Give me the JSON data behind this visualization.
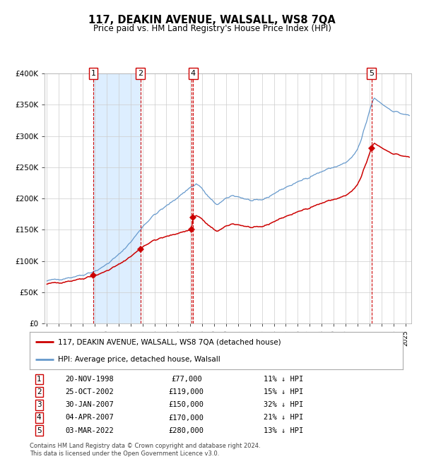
{
  "title": "117, DEAKIN AVENUE, WALSALL, WS8 7QA",
  "subtitle": "Price paid vs. HM Land Registry's House Price Index (HPI)",
  "legend_line1": "117, DEAKIN AVENUE, WALSALL, WS8 7QA (detached house)",
  "legend_line2": "HPI: Average price, detached house, Walsall",
  "footer1": "Contains HM Land Registry data © Crown copyright and database right 2024.",
  "footer2": "This data is licensed under the Open Government Licence v3.0.",
  "sales": [
    {
      "num": 1,
      "date": "20-NOV-1998",
      "price": 77000,
      "pct": "11% ↓ HPI",
      "year": 1998.89
    },
    {
      "num": 2,
      "date": "25-OCT-2002",
      "price": 119000,
      "pct": "15% ↓ HPI",
      "year": 2002.82
    },
    {
      "num": 3,
      "date": "30-JAN-2007",
      "price": 150000,
      "pct": "32% ↓ HPI",
      "year": 2007.08
    },
    {
      "num": 4,
      "date": "04-APR-2007",
      "price": 170000,
      "pct": "21% ↓ HPI",
      "year": 2007.25
    },
    {
      "num": 5,
      "date": "03-MAR-2022",
      "price": 280000,
      "pct": "13% ↓ HPI",
      "year": 2022.17
    }
  ],
  "hpi_color": "#6699cc",
  "price_color": "#cc0000",
  "sale_marker_color": "#cc0000",
  "vline_color": "#cc0000",
  "shade_color": "#ddeeff",
  "ylim": [
    0,
    400000
  ],
  "xlim_start": 1994.8,
  "xlim_end": 2025.5,
  "background_color": "#ffffff",
  "grid_color": "#cccccc",
  "hpi_anchors": [
    [
      1995.0,
      68000
    ],
    [
      1995.5,
      70000
    ],
    [
      1996.0,
      71000
    ],
    [
      1996.5,
      72500
    ],
    [
      1997.0,
      74000
    ],
    [
      1997.5,
      76000
    ],
    [
      1998.0,
      78000
    ],
    [
      1998.5,
      81000
    ],
    [
      1999.0,
      84000
    ],
    [
      1999.5,
      88000
    ],
    [
      2000.0,
      95000
    ],
    [
      2000.5,
      102000
    ],
    [
      2001.0,
      110000
    ],
    [
      2001.5,
      120000
    ],
    [
      2002.0,
      130000
    ],
    [
      2002.5,
      142000
    ],
    [
      2003.0,
      155000
    ],
    [
      2003.5,
      165000
    ],
    [
      2004.0,
      174000
    ],
    [
      2004.5,
      181000
    ],
    [
      2005.0,
      188000
    ],
    [
      2005.5,
      195000
    ],
    [
      2006.0,
      203000
    ],
    [
      2006.5,
      210000
    ],
    [
      2007.0,
      218000
    ],
    [
      2007.5,
      223000
    ],
    [
      2007.8,
      220000
    ],
    [
      2008.0,
      215000
    ],
    [
      2008.5,
      203000
    ],
    [
      2008.8,
      197000
    ],
    [
      2009.0,
      193000
    ],
    [
      2009.3,
      191000
    ],
    [
      2009.6,
      194000
    ],
    [
      2009.9,
      198000
    ],
    [
      2010.0,
      200000
    ],
    [
      2010.3,
      203000
    ],
    [
      2010.6,
      205000
    ],
    [
      2011.0,
      203000
    ],
    [
      2011.5,
      200000
    ],
    [
      2012.0,
      197000
    ],
    [
      2012.5,
      196000
    ],
    [
      2013.0,
      198000
    ],
    [
      2013.5,
      202000
    ],
    [
      2014.0,
      208000
    ],
    [
      2014.5,
      213000
    ],
    [
      2015.0,
      218000
    ],
    [
      2015.5,
      222000
    ],
    [
      2016.0,
      226000
    ],
    [
      2016.5,
      231000
    ],
    [
      2017.0,
      235000
    ],
    [
      2017.5,
      239000
    ],
    [
      2018.0,
      243000
    ],
    [
      2018.5,
      247000
    ],
    [
      2019.0,
      250000
    ],
    [
      2019.5,
      253000
    ],
    [
      2020.0,
      257000
    ],
    [
      2020.5,
      265000
    ],
    [
      2021.0,
      278000
    ],
    [
      2021.3,
      292000
    ],
    [
      2021.5,
      308000
    ],
    [
      2021.8,
      325000
    ],
    [
      2022.0,
      340000
    ],
    [
      2022.2,
      352000
    ],
    [
      2022.4,
      360000
    ],
    [
      2022.6,
      358000
    ],
    [
      2022.8,
      355000
    ],
    [
      2023.0,
      352000
    ],
    [
      2023.3,
      348000
    ],
    [
      2023.6,
      344000
    ],
    [
      2024.0,
      340000
    ],
    [
      2024.5,
      337000
    ],
    [
      2025.0,
      334000
    ],
    [
      2025.4,
      332000
    ]
  ]
}
